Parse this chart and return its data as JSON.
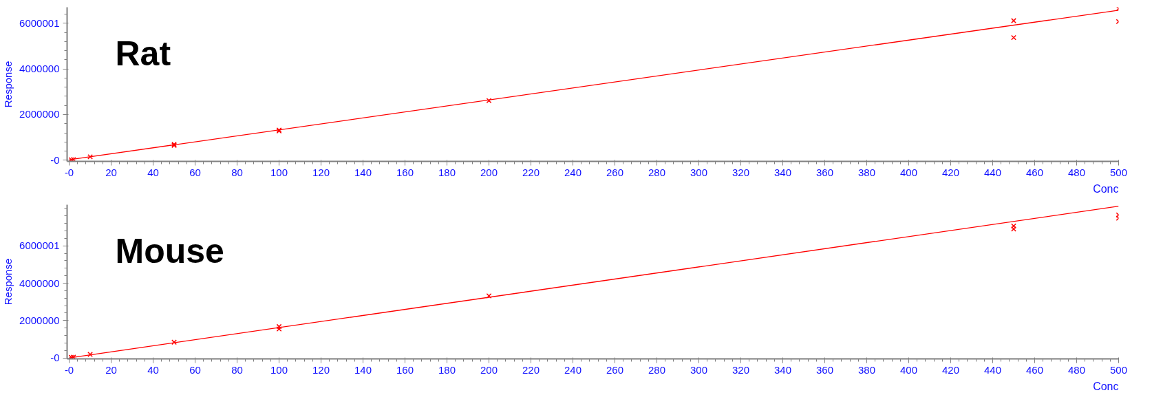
{
  "chart_data": [
    {
      "type": "scatter",
      "title": "Rat",
      "xlabel": "Conc",
      "ylabel": "Response",
      "xlim": [
        -1,
        500
      ],
      "ylim": [
        -50000,
        6700000
      ],
      "xticks": [
        {
          "value": 0,
          "label": "-0"
        },
        20,
        40,
        60,
        80,
        100,
        120,
        140,
        160,
        180,
        200,
        220,
        240,
        260,
        280,
        300,
        320,
        340,
        360,
        380,
        400,
        420,
        440,
        460,
        480,
        500
      ],
      "yticks": [
        {
          "value": 0,
          "label": "-0"
        },
        2000000,
        4000000,
        6000001
      ],
      "marker": "cross",
      "grid": false,
      "series": [
        {
          "color": "#ff0000",
          "x": [
            1,
            2,
            10,
            50,
            50,
            100,
            100,
            200,
            450,
            450,
            500,
            500
          ],
          "values": [
            20000,
            30000,
            150000,
            650000,
            700000,
            1280000,
            1320000,
            2610000,
            6110000,
            5370000,
            6640000,
            6070000
          ]
        },
        {
          "type": "line",
          "marker": "none",
          "color": "#ff0000",
          "x": [
            0,
            500
          ],
          "values": [
            20000,
            6570000
          ]
        }
      ]
    },
    {
      "type": "scatter",
      "title": "Mouse",
      "xlabel": "Conc",
      "ylabel": "Response",
      "xlim": [
        -1,
        500
      ],
      "ylim": [
        -50000,
        8200000
      ],
      "xticks": [
        {
          "value": 0,
          "label": "-0"
        },
        20,
        40,
        60,
        80,
        100,
        120,
        140,
        160,
        180,
        200,
        220,
        240,
        260,
        280,
        300,
        320,
        340,
        360,
        380,
        400,
        420,
        440,
        460,
        480,
        500
      ],
      "yticks": [
        {
          "value": 0,
          "label": "-0"
        },
        2000000,
        4000000,
        6000001
      ],
      "marker": "cross",
      "grid": false,
      "series": [
        {
          "color": "#ff0000",
          "x": [
            1,
            2,
            10,
            50,
            100,
            100,
            200,
            450,
            450,
            500,
            500
          ],
          "values": [
            30000,
            40000,
            190000,
            840000,
            1550000,
            1680000,
            3320000,
            7060000,
            6900000,
            7650000,
            7480000
          ]
        },
        {
          "type": "line",
          "marker": "none",
          "color": "#ff0000",
          "x": [
            0,
            500
          ],
          "values": [
            0,
            8120000
          ]
        }
      ]
    }
  ]
}
